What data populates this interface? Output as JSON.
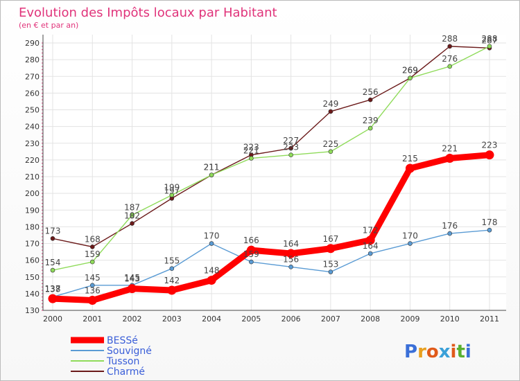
{
  "chart_data": {
    "type": "line",
    "title": "Evolution des Impôts locaux par Habitant",
    "subtitle": "(en € et par an)",
    "x": [
      "2000",
      "2001",
      "2002",
      "2003",
      "2004",
      "2005",
      "2006",
      "2007",
      "2008",
      "2009",
      "2010",
      "2011"
    ],
    "ylim": [
      130,
      295
    ],
    "yticks": [
      130,
      140,
      150,
      160,
      170,
      180,
      190,
      200,
      210,
      220,
      230,
      240,
      250,
      260,
      270,
      280,
      290
    ],
    "grid": true,
    "legend_position": "bottom-left",
    "series": [
      {
        "name": "Charmé",
        "color": "#6b1a1a",
        "values": [
          173,
          168,
          182,
          197,
          211,
          223,
          227,
          249,
          256,
          269,
          288,
          287
        ]
      },
      {
        "name": "Tusson",
        "color": "#8fdb5a",
        "values": [
          154,
          159,
          187,
          199,
          211,
          221,
          223,
          225,
          239,
          269,
          276,
          288
        ]
      },
      {
        "name": "Souvigné",
        "color": "#5a9bd4",
        "values": [
          138,
          145,
          145,
          155,
          170,
          159,
          156,
          153,
          164,
          170,
          176,
          178
        ]
      },
      {
        "name": "BESSé",
        "color": "#ff0000",
        "values": [
          137,
          136,
          143,
          142,
          148,
          166,
          164,
          167,
          172,
          215,
          221,
          223
        ]
      }
    ]
  },
  "logo": {
    "text": "Proxiti"
  }
}
